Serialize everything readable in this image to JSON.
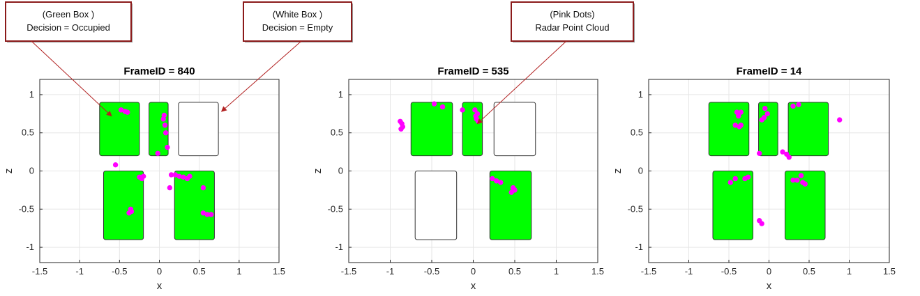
{
  "annotations": [
    {
      "line1": "(Green Box )",
      "line2": "Decision = Occupied",
      "target_panel": 0,
      "target": [
        -0.6,
        0.72
      ]
    },
    {
      "line1": "(White Box )",
      "line2": "Decision = Empty",
      "target_panel": 0,
      "target": [
        0.78,
        0.78
      ]
    },
    {
      "line1": "(Pink Dots)",
      "line2": "Radar Point Cloud",
      "target_panel": 1,
      "target": [
        0.05,
        0.62
      ]
    }
  ],
  "colors": {
    "occupied": "#00ff00",
    "empty": "#ffffff",
    "points": "#ff00ff",
    "annotation_border": "#8b1a1a",
    "arrow": "#b22222",
    "grid": "#e6e6e6"
  },
  "chart_data": [
    {
      "type": "scatter",
      "title": "FrameID = 840",
      "xlabel": "x",
      "ylabel": "z",
      "xlim": [
        -1.5,
        1.5
      ],
      "ylim": [
        -1.2,
        1.2
      ],
      "xticks": [
        "-1.5",
        "-1",
        "-0.5",
        "0",
        "0.5",
        "1",
        "1.5"
      ],
      "yticks": [
        "-1",
        "-0.5",
        "0",
        "0.5",
        "1"
      ],
      "grid": true,
      "seats": [
        {
          "x0": -0.75,
          "x1": -0.25,
          "z0": 0.2,
          "z1": 0.9,
          "state": "occupied"
        },
        {
          "x0": -0.13,
          "x1": 0.11,
          "z0": 0.2,
          "z1": 0.9,
          "state": "occupied"
        },
        {
          "x0": 0.24,
          "x1": 0.74,
          "z0": 0.2,
          "z1": 0.9,
          "state": "empty"
        },
        {
          "x0": -0.7,
          "x1": -0.2,
          "z0": -0.9,
          "z1": 0.0,
          "state": "occupied"
        },
        {
          "x0": 0.19,
          "x1": 0.69,
          "z0": -0.9,
          "z1": 0.0,
          "state": "occupied"
        }
      ],
      "points": [
        [
          -0.48,
          0.8
        ],
        [
          -0.43,
          0.78
        ],
        [
          -0.4,
          0.77
        ],
        [
          0.06,
          0.73
        ],
        [
          0.05,
          0.68
        ],
        [
          0.07,
          0.6
        ],
        [
          0.08,
          0.5
        ],
        [
          0.1,
          0.31
        ],
        [
          -0.02,
          0.23
        ],
        [
          -0.55,
          0.08
        ],
        [
          -0.25,
          -0.08
        ],
        [
          -0.22,
          -0.1
        ],
        [
          -0.2,
          -0.07
        ],
        [
          -0.36,
          -0.5
        ],
        [
          -0.35,
          -0.53
        ],
        [
          -0.38,
          -0.55
        ],
        [
          0.15,
          -0.05
        ],
        [
          0.2,
          -0.05
        ],
        [
          0.25,
          -0.07
        ],
        [
          0.3,
          -0.08
        ],
        [
          0.35,
          -0.1
        ],
        [
          0.38,
          -0.07
        ],
        [
          0.13,
          -0.22
        ],
        [
          0.55,
          -0.22
        ],
        [
          0.55,
          -0.55
        ],
        [
          0.6,
          -0.57
        ],
        [
          0.65,
          -0.57
        ]
      ]
    },
    {
      "type": "scatter",
      "title": "FrameID = 535",
      "xlabel": "x",
      "ylabel": "z",
      "xlim": [
        -1.5,
        1.5
      ],
      "ylim": [
        -1.2,
        1.2
      ],
      "xticks": [
        "-1.5",
        "-1",
        "-0.5",
        "0",
        "0.5",
        "1",
        "1.5"
      ],
      "yticks": [
        "-1",
        "-0.5",
        "0",
        "0.5",
        "1"
      ],
      "grid": true,
      "seats": [
        {
          "x0": -0.75,
          "x1": -0.25,
          "z0": 0.2,
          "z1": 0.9,
          "state": "occupied"
        },
        {
          "x0": -0.13,
          "x1": 0.11,
          "z0": 0.2,
          "z1": 0.9,
          "state": "occupied"
        },
        {
          "x0": 0.25,
          "x1": 0.75,
          "z0": 0.2,
          "z1": 0.9,
          "state": "empty"
        },
        {
          "x0": -0.7,
          "x1": -0.2,
          "z0": -0.9,
          "z1": 0.0,
          "state": "empty"
        },
        {
          "x0": 0.2,
          "x1": 0.7,
          "z0": -0.9,
          "z1": 0.0,
          "state": "occupied"
        }
      ],
      "points": [
        [
          -0.88,
          0.65
        ],
        [
          -0.86,
          0.62
        ],
        [
          -0.87,
          0.55
        ],
        [
          -0.85,
          0.58
        ],
        [
          -0.47,
          0.88
        ],
        [
          -0.37,
          0.84
        ],
        [
          -0.13,
          0.8
        ],
        [
          0.02,
          0.8
        ],
        [
          0.05,
          0.75
        ],
        [
          0.04,
          0.68
        ],
        [
          0.06,
          0.65
        ],
        [
          0.03,
          0.72
        ],
        [
          0.23,
          -0.1
        ],
        [
          0.28,
          -0.13
        ],
        [
          0.33,
          -0.15
        ],
        [
          0.48,
          -0.22
        ],
        [
          0.5,
          -0.25
        ],
        [
          0.46,
          -0.28
        ]
      ]
    },
    {
      "type": "scatter",
      "title": "FrameID = 14",
      "xlabel": "x",
      "ylabel": "z",
      "xlim": [
        -1.5,
        1.5
      ],
      "ylim": [
        -1.2,
        1.2
      ],
      "xticks": [
        "-1.5",
        "-1",
        "-0.5",
        "0",
        "0.5",
        "1",
        "1.5"
      ],
      "yticks": [
        "-1",
        "-0.5",
        "0",
        "0.5",
        "1"
      ],
      "grid": true,
      "seats": [
        {
          "x0": -0.75,
          "x1": -0.25,
          "z0": 0.2,
          "z1": 0.9,
          "state": "occupied"
        },
        {
          "x0": -0.13,
          "x1": 0.11,
          "z0": 0.2,
          "z1": 0.9,
          "state": "occupied"
        },
        {
          "x0": 0.24,
          "x1": 0.74,
          "z0": 0.2,
          "z1": 0.9,
          "state": "occupied"
        },
        {
          "x0": -0.7,
          "x1": -0.2,
          "z0": -0.9,
          "z1": 0.0,
          "state": "occupied"
        },
        {
          "x0": 0.2,
          "x1": 0.7,
          "z0": -0.9,
          "z1": 0.0,
          "state": "occupied"
        }
      ],
      "points": [
        [
          -0.4,
          0.77
        ],
        [
          -0.35,
          0.77
        ],
        [
          -0.38,
          0.72
        ],
        [
          -0.42,
          0.6
        ],
        [
          -0.37,
          0.58
        ],
        [
          -0.35,
          0.6
        ],
        [
          -0.05,
          0.82
        ],
        [
          -0.02,
          0.75
        ],
        [
          -0.06,
          0.7
        ],
        [
          -0.09,
          0.67
        ],
        [
          0.3,
          0.85
        ],
        [
          0.37,
          0.87
        ],
        [
          -0.12,
          0.23
        ],
        [
          0.17,
          0.25
        ],
        [
          0.22,
          0.22
        ],
        [
          0.25,
          0.18
        ],
        [
          0.88,
          0.67
        ],
        [
          -0.48,
          -0.15
        ],
        [
          -0.42,
          -0.1
        ],
        [
          -0.3,
          -0.1
        ],
        [
          -0.26,
          -0.08
        ],
        [
          0.3,
          -0.12
        ],
        [
          0.35,
          -0.12
        ],
        [
          0.4,
          -0.06
        ],
        [
          0.42,
          -0.15
        ],
        [
          0.45,
          -0.17
        ],
        [
          -0.12,
          -0.65
        ],
        [
          -0.09,
          -0.69
        ]
      ]
    }
  ]
}
